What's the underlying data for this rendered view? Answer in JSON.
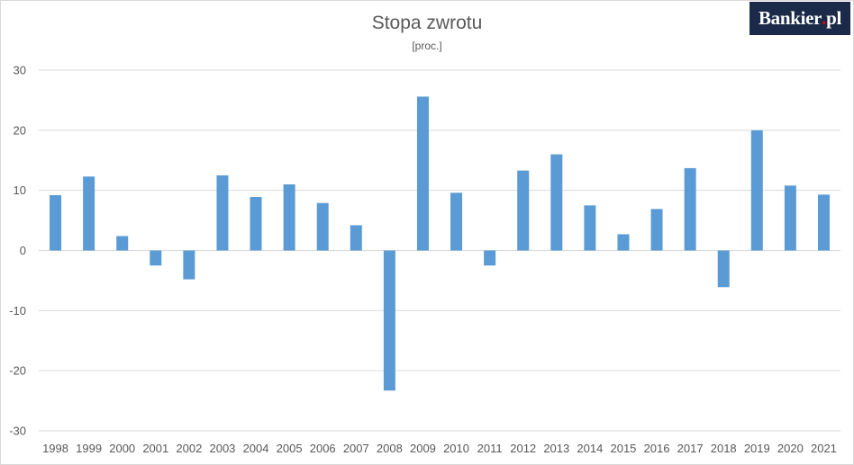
{
  "logo": {
    "name": "Bankier",
    "dot": ".",
    "suffix": "pl"
  },
  "chart_data": {
    "type": "bar",
    "title": "Stopa zwrotu",
    "subtitle": "[proc.]",
    "categories": [
      "1998",
      "1999",
      "2000",
      "2001",
      "2002",
      "2003",
      "2004",
      "2005",
      "2006",
      "2007",
      "2008",
      "2009",
      "2010",
      "2011",
      "2012",
      "2013",
      "2014",
      "2015",
      "2016",
      "2017",
      "2018",
      "2019",
      "2020",
      "2021"
    ],
    "values": [
      9.2,
      12.3,
      2.4,
      -2.5,
      -4.8,
      12.5,
      8.9,
      11.0,
      7.9,
      4.2,
      -23.3,
      25.6,
      9.6,
      -2.5,
      13.3,
      16.0,
      7.5,
      2.7,
      6.9,
      13.7,
      -6.1,
      20.0,
      10.8,
      9.3
    ],
    "yticks": [
      "30",
      "20",
      "10",
      "0",
      "-10",
      "-20",
      "-30"
    ],
    "ylim": [
      -30,
      30
    ],
    "grid": true,
    "bar_color": "#5b9bd5",
    "grid_color": "#d9d9d9",
    "legend": "none"
  }
}
